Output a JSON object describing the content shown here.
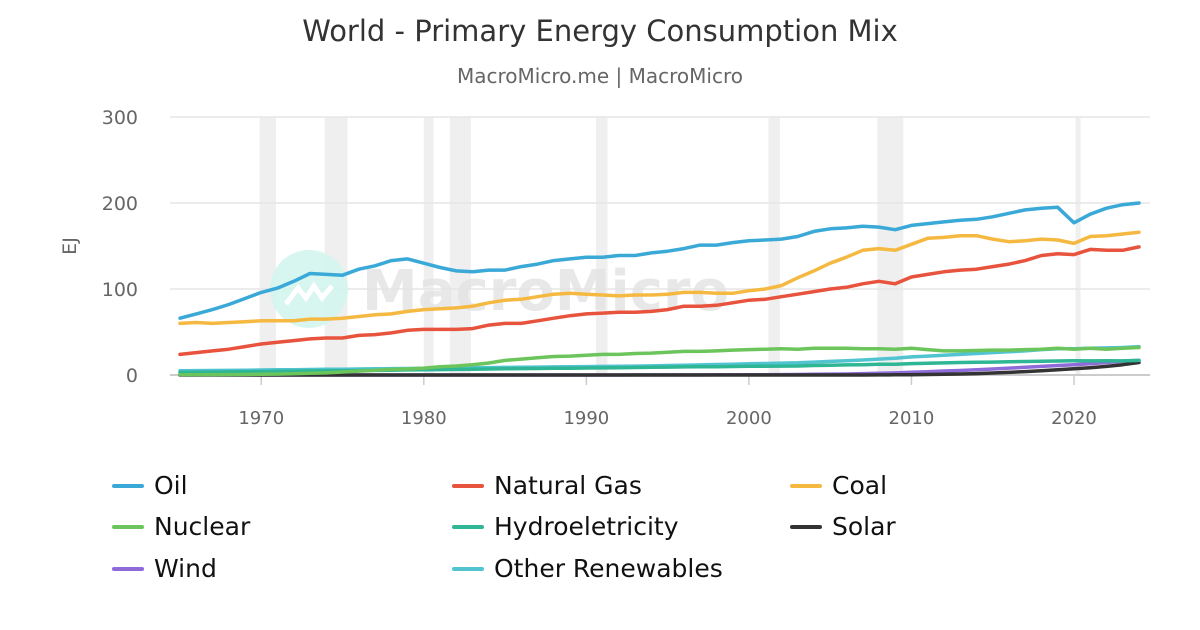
{
  "chart_data": {
    "type": "line",
    "title": "World - Primary Energy Consumption Mix",
    "subtitle": "MacroMicro.me | MacroMicro",
    "watermark": "MacroMicro",
    "ylabel": "EJ",
    "xlabel": "",
    "xlim": [
      1965,
      2024
    ],
    "ylim": [
      0,
      300
    ],
    "yticks": [
      0,
      100,
      200,
      300
    ],
    "xticks": [
      1970,
      1980,
      1990,
      2000,
      2010,
      2020
    ],
    "grid": true,
    "legend_position": "bottom",
    "shaded_periods": [
      [
        1969.9,
        1970.9
      ],
      [
        1973.9,
        1975.3
      ],
      [
        1980.0,
        1980.6
      ],
      [
        1981.6,
        1982.9
      ],
      [
        1990.6,
        1991.3
      ],
      [
        2001.2,
        2001.9
      ],
      [
        2007.9,
        2009.5
      ],
      [
        2020.1,
        2020.4
      ]
    ],
    "x": [
      1965,
      1966,
      1967,
      1968,
      1969,
      1970,
      1971,
      1972,
      1973,
      1974,
      1975,
      1976,
      1977,
      1978,
      1979,
      1980,
      1981,
      1982,
      1983,
      1984,
      1985,
      1986,
      1987,
      1988,
      1989,
      1990,
      1991,
      1992,
      1993,
      1994,
      1995,
      1996,
      1997,
      1998,
      1999,
      2000,
      2001,
      2002,
      2003,
      2004,
      2005,
      2006,
      2007,
      2008,
      2009,
      2010,
      2011,
      2012,
      2013,
      2014,
      2015,
      2016,
      2017,
      2018,
      2019,
      2020,
      2021,
      2022,
      2023,
      2024
    ],
    "series": [
      {
        "name": "Oil",
        "color": "#3aa9d8",
        "values": [
          66,
          71,
          76,
          82,
          89,
          96,
          101,
          109,
          118,
          117,
          116,
          123,
          127,
          133,
          135,
          130,
          125,
          121,
          120,
          122,
          122,
          126,
          129,
          133,
          135,
          137,
          137,
          139,
          139,
          142,
          144,
          147,
          151,
          151,
          154,
          156,
          157,
          158,
          161,
          167,
          170,
          171,
          173,
          172,
          169,
          174,
          176,
          178,
          180,
          181,
          184,
          188,
          192,
          194,
          195,
          177,
          187,
          194,
          198,
          200
        ]
      },
      {
        "name": "Natural Gas",
        "color": "#e8533d",
        "values": [
          24,
          26,
          28,
          30,
          33,
          36,
          38,
          40,
          42,
          43,
          43,
          46,
          47,
          49,
          52,
          53,
          53,
          53,
          54,
          58,
          60,
          60,
          63,
          66,
          69,
          71,
          72,
          73,
          73,
          74,
          76,
          80,
          80,
          81,
          84,
          87,
          88,
          91,
          94,
          97,
          100,
          102,
          106,
          109,
          106,
          114,
          117,
          120,
          122,
          123,
          126,
          129,
          133,
          139,
          141,
          140,
          146,
          145,
          145,
          149
        ]
      },
      {
        "name": "Coal",
        "color": "#f5b942",
        "values": [
          60,
          61,
          60,
          61,
          62,
          63,
          63,
          63,
          65,
          65,
          66,
          68,
          70,
          71,
          74,
          76,
          77,
          78,
          80,
          84,
          87,
          88,
          91,
          94,
          95,
          94,
          93,
          92,
          93,
          93,
          94,
          96,
          96,
          95,
          95,
          98,
          100,
          104,
          113,
          121,
          130,
          137,
          145,
          147,
          145,
          152,
          159,
          160,
          162,
          162,
          158,
          155,
          156,
          158,
          157,
          153,
          161,
          162,
          164,
          166
        ]
      },
      {
        "name": "Nuclear",
        "color": "#6cc55c",
        "values": [
          0.2,
          0.3,
          0.4,
          0.5,
          0.6,
          0.8,
          1.1,
          1.5,
          2,
          2.5,
          3.5,
          4.5,
          5.5,
          6.5,
          7,
          8,
          9.5,
          10.5,
          12,
          14,
          17,
          18.5,
          20,
          21.5,
          22,
          23,
          24,
          24,
          25,
          25.5,
          26.5,
          27.5,
          27.5,
          28,
          29,
          29.5,
          30,
          30.5,
          30,
          31,
          31,
          31,
          30.5,
          30.5,
          30,
          31,
          29.5,
          28,
          28,
          28.5,
          29,
          29,
          29.5,
          30,
          31,
          30,
          31,
          30,
          31,
          32
        ]
      },
      {
        "name": "Hydroeletricity",
        "color": "#2fb695",
        "values": [
          3,
          3.2,
          3.4,
          3.6,
          3.8,
          4,
          4.2,
          4.4,
          4.6,
          4.8,
          5,
          5.1,
          5.3,
          5.6,
          5.9,
          6.1,
          6.3,
          6.5,
          6.8,
          7,
          7.2,
          7.4,
          7.6,
          7.8,
          7.9,
          8.1,
          8.3,
          8.4,
          8.7,
          8.9,
          9.2,
          9.4,
          9.6,
          9.7,
          9.9,
          10.2,
          10.2,
          10.4,
          10.5,
          11,
          11.4,
          11.8,
          12,
          12.5,
          12.6,
          13.3,
          13.6,
          14.1,
          14.5,
          14.9,
          15,
          15.5,
          15.7,
          16.1,
          16.3,
          16.5,
          16.4,
          16.6,
          16.4,
          17
        ]
      },
      {
        "name": "Solar",
        "color": "#333333",
        "values": [
          0,
          0,
          0,
          0,
          0,
          0,
          0,
          0,
          0,
          0,
          0,
          0,
          0,
          0,
          0,
          0,
          0,
          0,
          0,
          0,
          0,
          0,
          0,
          0,
          0,
          0,
          0,
          0,
          0,
          0,
          0,
          0,
          0,
          0,
          0,
          0,
          0,
          0,
          0,
          0,
          0,
          0,
          0,
          0.1,
          0.2,
          0.3,
          0.6,
          0.9,
          1.2,
          1.6,
          2.3,
          3,
          4,
          5,
          6,
          7.2,
          8.5,
          10,
          12,
          14.5
        ]
      },
      {
        "name": "Wind",
        "color": "#8e6bd9",
        "values": [
          0,
          0,
          0,
          0,
          0,
          0,
          0,
          0,
          0,
          0,
          0,
          0,
          0,
          0,
          0,
          0,
          0,
          0,
          0,
          0,
          0,
          0,
          0,
          0,
          0,
          0.04,
          0.04,
          0.05,
          0.06,
          0.07,
          0.08,
          0.1,
          0.12,
          0.2,
          0.3,
          0.3,
          0.4,
          0.5,
          0.6,
          0.8,
          1,
          1.2,
          1.6,
          2,
          2.5,
          3.1,
          3.8,
          4.6,
          5.2,
          6,
          7,
          8,
          9,
          10,
          11,
          12,
          13,
          14.5,
          16,
          17
        ]
      },
      {
        "name": "Other Renewables",
        "color": "#52c4d1",
        "values": [
          5,
          5.1,
          5.2,
          5.4,
          5.6,
          5.8,
          6,
          6.2,
          6.4,
          6.6,
          6.8,
          7,
          7.2,
          7.4,
          7.6,
          7.8,
          8,
          8.2,
          8.4,
          8.6,
          8.8,
          9,
          9.2,
          9.4,
          9.6,
          9.8,
          10,
          10.2,
          10.4,
          10.6,
          11,
          11.4,
          11.8,
          12.2,
          12.6,
          13,
          13.4,
          13.8,
          14.2,
          15,
          15.8,
          16.6,
          17.4,
          18.5,
          19.5,
          21,
          22,
          23,
          24,
          25,
          26,
          27,
          28,
          29.5,
          30.5,
          30.5,
          31,
          31.5,
          32,
          33
        ]
      }
    ]
  }
}
